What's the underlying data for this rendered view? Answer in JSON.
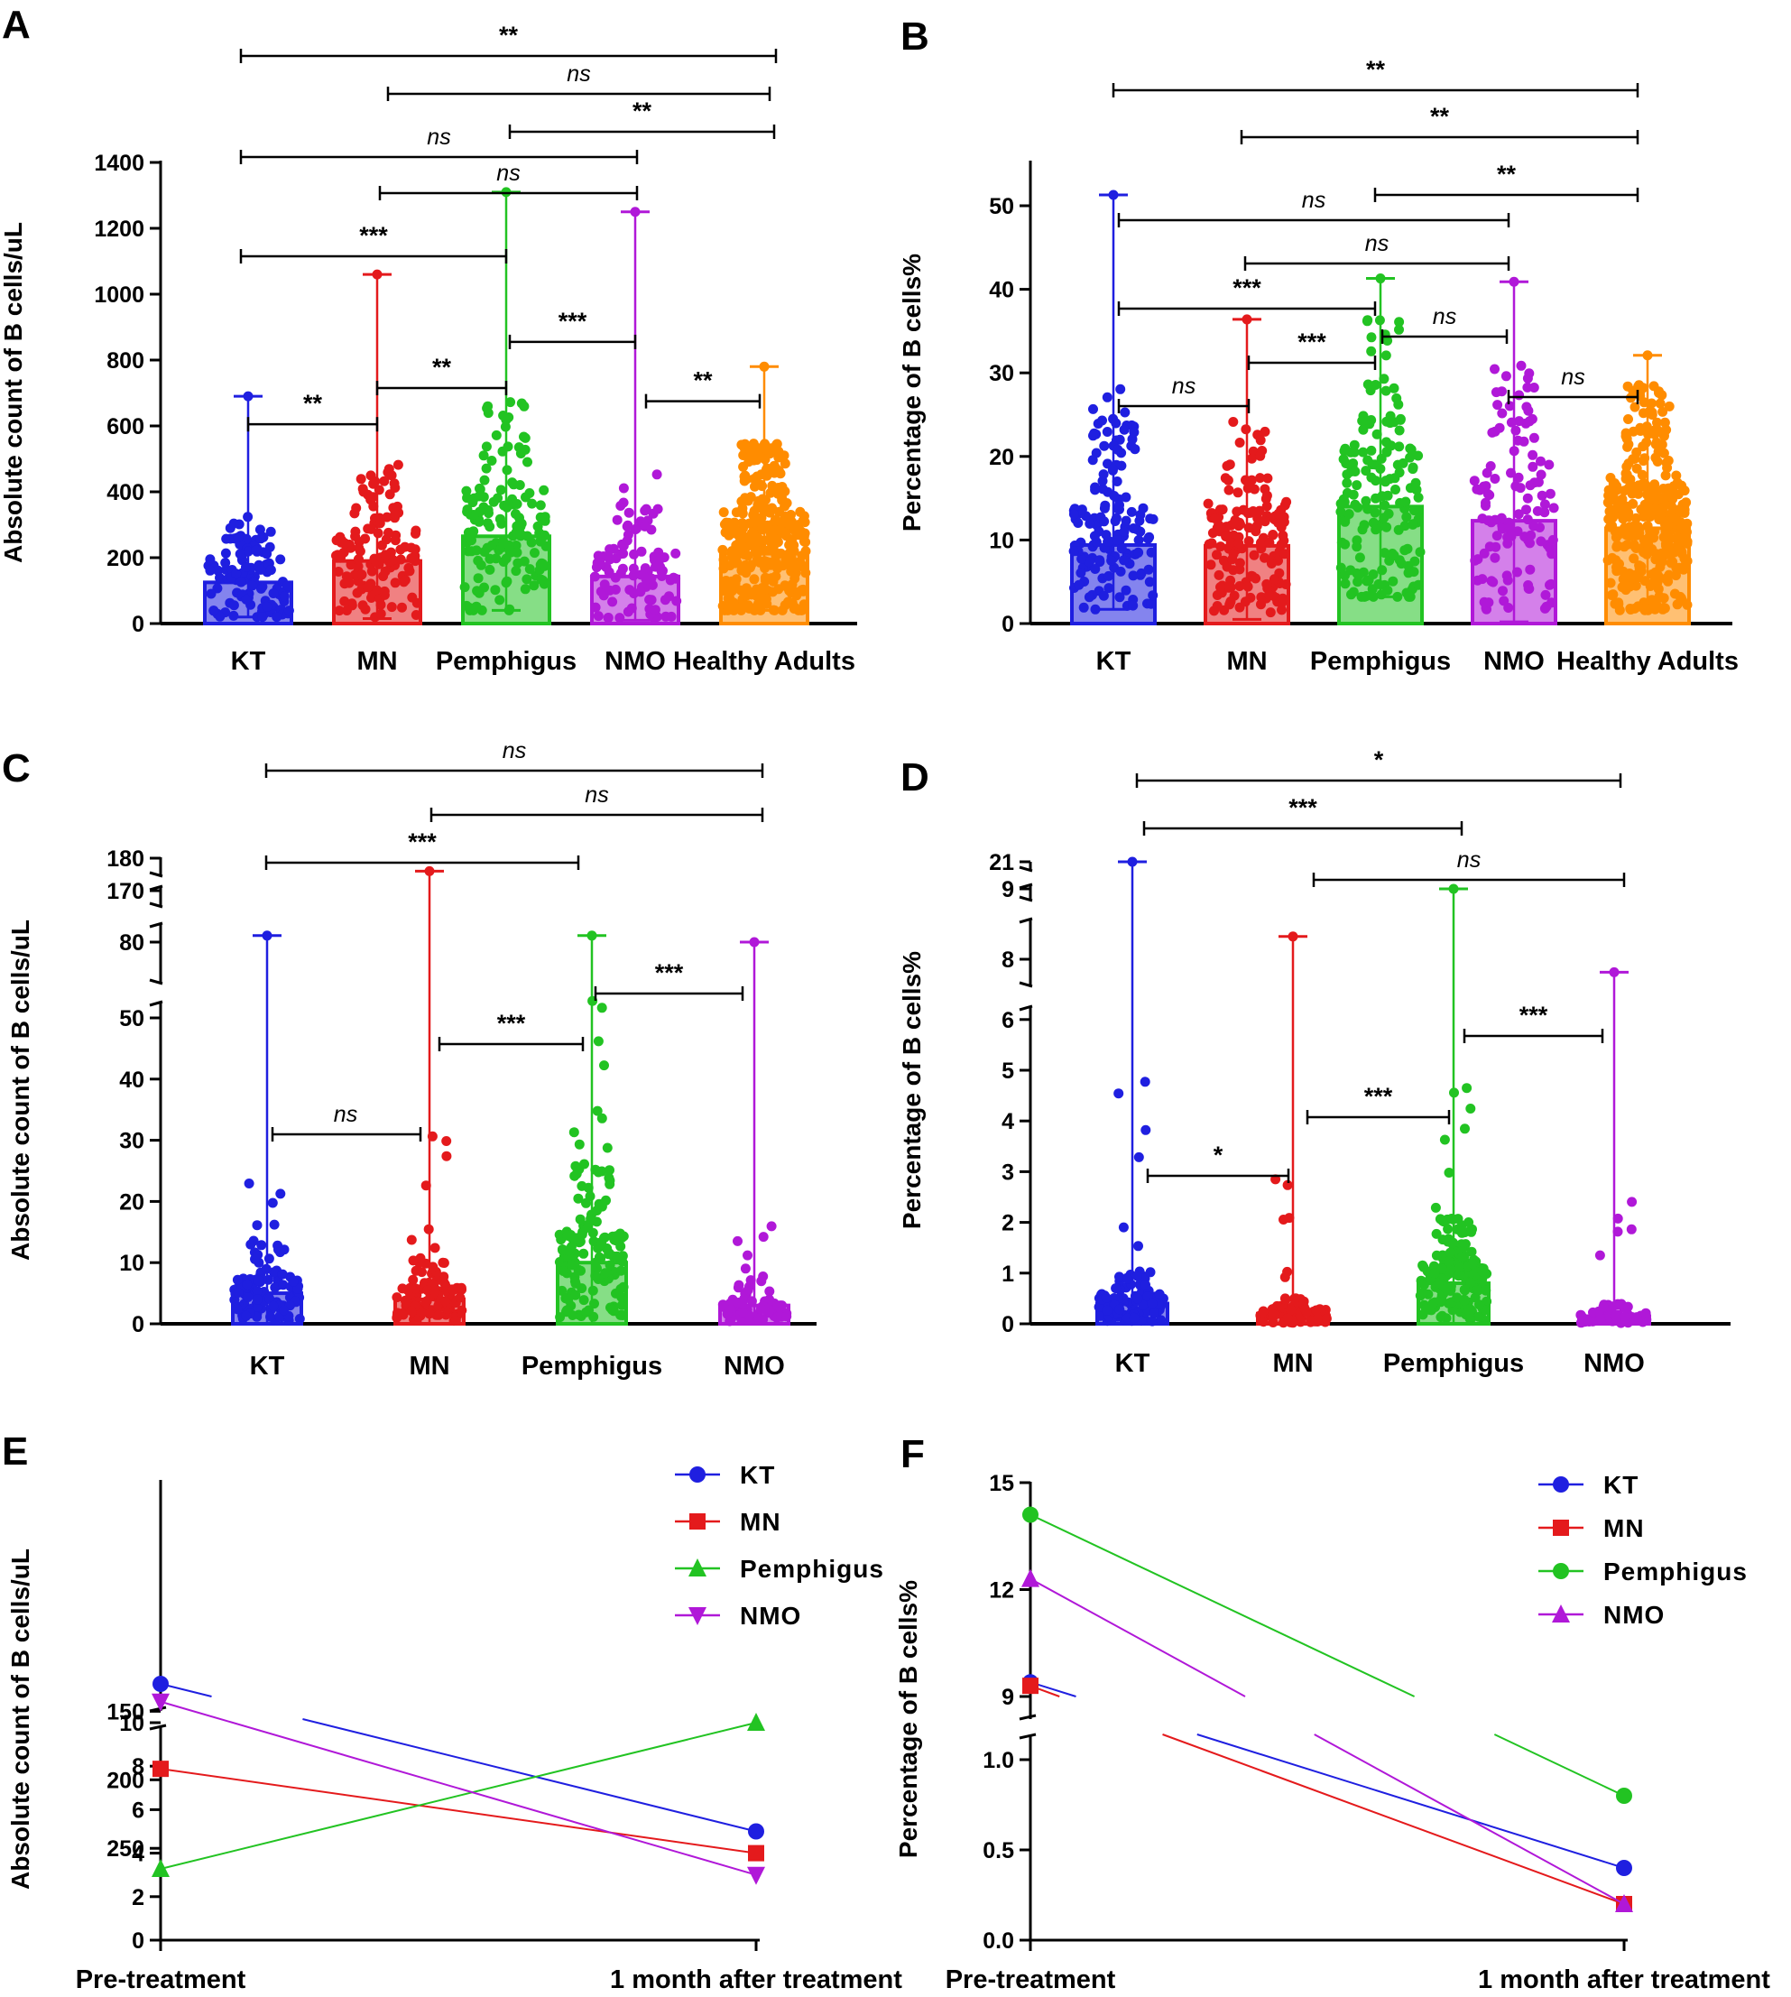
{
  "chart_data": [
    {
      "panel": "A",
      "type": "bar",
      "ylabel": "Absolute count of B cells/uL",
      "categories": [
        "KT",
        "MN",
        "Pemphigus",
        "NMO",
        "Healthy Adults"
      ],
      "colors": [
        "#1f1fe0",
        "#e41a1c",
        "#22c322",
        "#b018d8",
        "#ff8c00"
      ],
      "values": [
        125,
        190,
        265,
        143,
        212
      ],
      "mins": [
        20,
        15,
        40,
        10,
        40
      ],
      "maxs": [
        690,
        1060,
        1310,
        1250,
        780
      ],
      "ylim": [
        0,
        1400
      ],
      "yticks": [
        0,
        200,
        400,
        600,
        800,
        1000,
        1200,
        1400
      ],
      "comparisons": [
        {
          "from": 0,
          "to": 1,
          "label": "**",
          "level": 605,
          "kind": "lvl"
        },
        {
          "from": 1,
          "to": 2,
          "label": "**",
          "level": 715,
          "kind": "lvl"
        },
        {
          "from": 2,
          "to": 3,
          "label": "***",
          "level": 855,
          "kind": "lvl"
        },
        {
          "from": 3,
          "to": 4,
          "label": "**",
          "level": 675,
          "kind": "lvl"
        },
        {
          "from": 0,
          "to": 2,
          "label": "***",
          "level": 1120,
          "kind": "lvl"
        },
        {
          "from": 1,
          "to": 3,
          "label": "ns",
          "level": 1310,
          "kind": "lvl"
        },
        {
          "from": 0,
          "to": 3,
          "label": "ns",
          "level": 1420,
          "kind": "lvl"
        },
        {
          "from": 2,
          "to": 4,
          "label": "**",
          "level": 1490,
          "kind": "lvl"
        },
        {
          "from": 1,
          "to": 4,
          "label": "ns",
          "level": 1620,
          "kind": "lvl"
        },
        {
          "from": 0,
          "to": 4,
          "label": "**",
          "level": 1720,
          "kind": "lvl"
        }
      ]
    },
    {
      "panel": "B",
      "type": "bar",
      "ylabel": "Percentage of B cells%",
      "categories": [
        "KT",
        "MN",
        "Pemphigus",
        "NMO",
        "Healthy Adults"
      ],
      "colors": [
        "#1f1fe0",
        "#e41a1c",
        "#22c322",
        "#b018d8",
        "#ff8c00"
      ],
      "values": [
        9.4,
        9.3,
        14.0,
        12.3,
        11.4
      ],
      "mins": [
        1.7,
        0.5,
        3.2,
        0.2,
        1.6
      ],
      "maxs": [
        51.3,
        36.4,
        41.3,
        40.9,
        32.1
      ],
      "ylim": [
        0,
        55
      ],
      "yticks": [
        0,
        10,
        20,
        30,
        40,
        50
      ],
      "comparisons": [
        {
          "from": 0,
          "to": 1,
          "label": "ns",
          "level": 26,
          "kind": "lvl"
        },
        {
          "from": 1,
          "to": 2,
          "label": "***",
          "level": 31,
          "kind": "lvl"
        },
        {
          "from": 2,
          "to": 3,
          "label": "ns",
          "level": 34,
          "kind": "lvl"
        },
        {
          "from": 3,
          "to": 4,
          "label": "ns",
          "level": 27,
          "kind": "lvl"
        },
        {
          "from": 0,
          "to": 2,
          "label": "***",
          "level": 37.5,
          "kind": "lvl"
        },
        {
          "from": 1,
          "to": 3,
          "label": "ns",
          "level": 43,
          "kind": "lvl"
        },
        {
          "from": 0,
          "to": 3,
          "label": "ns",
          "level": 48,
          "kind": "lvl"
        },
        {
          "from": 2,
          "to": 4,
          "label": "**",
          "level": 51,
          "kind": "lvl"
        },
        {
          "from": 1,
          "to": 4,
          "label": "**",
          "level": 57.5,
          "kind": "lvl"
        },
        {
          "from": 0,
          "to": 4,
          "label": "**",
          "level": 63,
          "kind": "lvl"
        }
      ]
    },
    {
      "panel": "C",
      "type": "bar",
      "ylabel": "Absolute count of B cells/uL",
      "categories": [
        "KT",
        "MN",
        "Pemphigus",
        "NMO"
      ],
      "colors": [
        "#1f1fe0",
        "#e41a1c",
        "#22c322",
        "#b018d8"
      ],
      "values": [
        5,
        4,
        10,
        3
      ],
      "mins": [
        0,
        0,
        0,
        0
      ],
      "maxs": [
        83,
        176,
        83,
        80
      ],
      "ylim": [
        0,
        180
      ],
      "yticks": [
        0,
        10,
        20,
        30,
        40,
        50,
        80,
        170,
        180
      ],
      "axis_breaks": [
        [
          55,
          77
        ],
        [
          84,
          168
        ]
      ],
      "comparisons": [
        {
          "from": 0,
          "to": 1,
          "label": "ns",
          "kind": "bot"
        },
        {
          "from": 1,
          "to": 2,
          "label": "***",
          "kind": "mid"
        },
        {
          "from": 2,
          "to": 3,
          "label": "***",
          "kind": "top"
        },
        {
          "from": 0,
          "to": 2,
          "label": "***",
          "kind": "a1"
        },
        {
          "from": 1,
          "to": 3,
          "label": "ns",
          "kind": "a2"
        },
        {
          "from": 0,
          "to": 3,
          "label": "ns",
          "kind": "a3"
        }
      ]
    },
    {
      "panel": "D",
      "type": "bar",
      "ylabel": "Percentage of B cells%",
      "categories": [
        "KT",
        "MN",
        "Pemphigus",
        "NMO"
      ],
      "colors": [
        "#1f1fe0",
        "#e41a1c",
        "#22c322",
        "#b018d8"
      ],
      "values": [
        0.4,
        0.2,
        0.8,
        0.15
      ],
      "mins": [
        0,
        0,
        0,
        0
      ],
      "maxs": [
        21,
        8.7,
        9,
        7.6
      ],
      "ylim": [
        0,
        21
      ],
      "yticks": [
        0,
        1,
        2,
        3,
        4,
        5,
        6,
        8,
        9,
        21
      ],
      "axis_breaks": [
        [
          6.2,
          7.6
        ],
        [
          9,
          21
        ]
      ],
      "comparisons": [
        {
          "from": 0,
          "to": 1,
          "label": "*",
          "kind": "bot"
        },
        {
          "from": 1,
          "to": 2,
          "label": "***",
          "kind": "mid"
        },
        {
          "from": 2,
          "to": 3,
          "label": "***",
          "kind": "top"
        },
        {
          "from": 1,
          "to": 3,
          "label": "ns",
          "kind": "a1"
        },
        {
          "from": 0,
          "to": 2,
          "label": "***",
          "kind": "a2"
        },
        {
          "from": 0,
          "to": 3,
          "label": "*",
          "kind": "a3"
        }
      ]
    },
    {
      "panel": "E",
      "type": "line",
      "ylabel": "Absolute count of B cells/uL",
      "x": [
        "Pre-treatment",
        "1 month after treatment"
      ],
      "yticks": [
        0,
        2,
        4,
        6,
        8,
        10,
        150,
        200,
        250
      ],
      "axis_breaks": [
        [
          10,
          130
        ]
      ],
      "series": [
        {
          "name": "KT",
          "color": "#1f1fe0",
          "marker": "circle",
          "values": [
            130,
            5
          ]
        },
        {
          "name": "MN",
          "color": "#e41a1c",
          "marker": "square",
          "values": [
            192,
            4
          ]
        },
        {
          "name": "Pemphigus",
          "color": "#22c322",
          "marker": "triangle",
          "values": [
            265,
            10
          ]
        },
        {
          "name": "NMO",
          "color": "#b018d8",
          "marker": "triangle-down",
          "values": [
            143,
            3
          ]
        }
      ]
    },
    {
      "panel": "F",
      "type": "line",
      "ylabel": "Percentage of B cells%",
      "x": [
        "Pre-treatment",
        "1 month after treatment"
      ],
      "yticks": [
        0.0,
        0.5,
        1.0,
        9,
        12,
        15
      ],
      "axis_breaks": [
        [
          1.2,
          9
        ]
      ],
      "series": [
        {
          "name": "KT",
          "color": "#1f1fe0",
          "marker": "circle",
          "values": [
            9.4,
            0.4
          ]
        },
        {
          "name": "MN",
          "color": "#e41a1c",
          "marker": "square",
          "values": [
            9.3,
            0.2
          ]
        },
        {
          "name": "Pemphigus",
          "color": "#22c322",
          "marker": "circle",
          "values": [
            14.1,
            0.8
          ]
        },
        {
          "name": "NMO",
          "color": "#b018d8",
          "marker": "triangle",
          "values": [
            12.3,
            0.2
          ]
        }
      ]
    }
  ]
}
